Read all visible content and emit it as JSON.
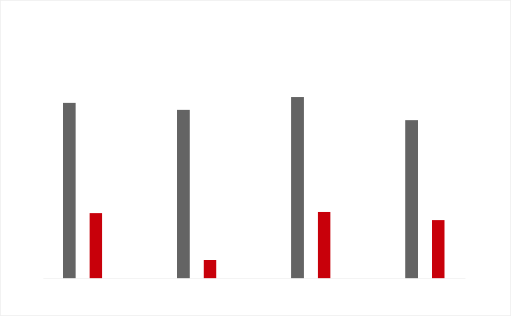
{
  "chart_data": {
    "type": "bar",
    "categories": [
      null,
      null,
      null,
      null
    ],
    "series": [
      {
        "color": "#646464",
        "values": [
          251,
          241,
          259,
          226
        ]
      },
      {
        "color": "#c8000a",
        "values": [
          93,
          26,
          95,
          83
        ]
      }
    ],
    "ylim": [
      0,
      270
    ]
  }
}
